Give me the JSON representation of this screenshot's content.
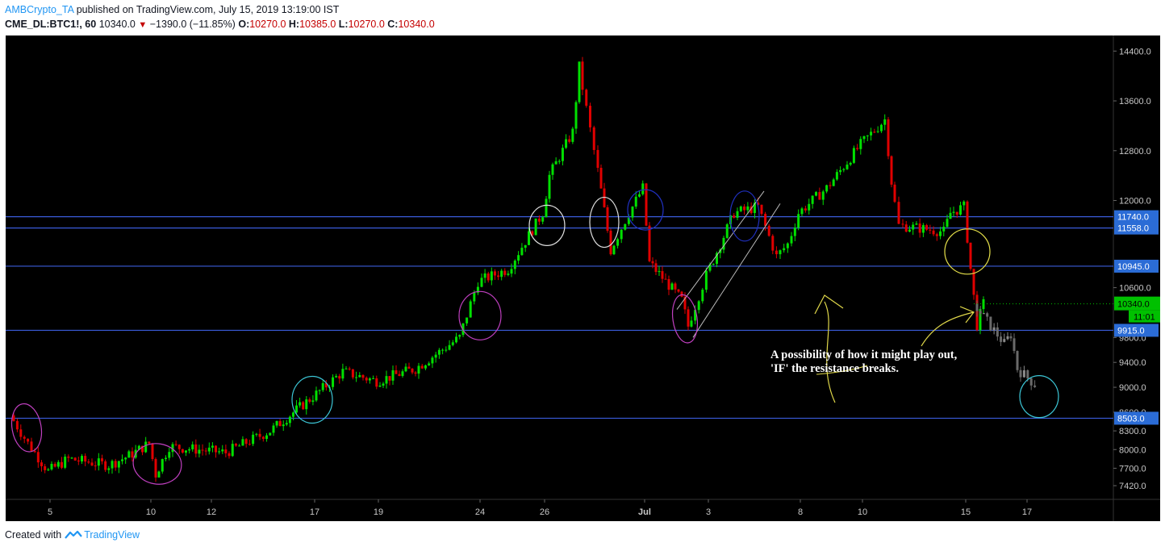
{
  "header": {
    "author": "AMBCrypto_TA",
    "published": "published on TradingView.com, July 15, 2019 13:19:00 IST",
    "symbol": "CME_DL:BTC1!, 60",
    "last": "10340.0",
    "change": "−1390.0 (−11.85%)",
    "o_label": "O:",
    "o_val": "10270.0",
    "h_label": "H:",
    "h_val": "10385.0",
    "l_label": "L:",
    "l_val": "10270.0",
    "c_label": "C:",
    "c_val": "10340.0"
  },
  "footer": {
    "created_with": "Created with",
    "brand": "TradingView"
  },
  "colors": {
    "background": "#000000",
    "up": "#00e000",
    "down": "#e00000",
    "projection": "#6a6a6a",
    "level_line": "#3a5bd9",
    "level_label_bg": "#2b6cd6",
    "price_label_bg": "#00c000"
  },
  "chart_data": {
    "type": "candlestick",
    "title": "",
    "ylim": [
      7200,
      14650
    ],
    "y_ticks": [
      "14400.0",
      "13600.0",
      "12800.0",
      "12000.0",
      "10600.0",
      "9800.0",
      "9400.0",
      "9000.0",
      "8600.0",
      "8300.0",
      "8000.0",
      "7700.0",
      "7420.0"
    ],
    "x_ticks": [
      "5",
      "10",
      "12",
      "17",
      "19",
      "24",
      "26",
      "Jul",
      "3",
      "8",
      "10",
      "15",
      "17"
    ],
    "levels": [
      {
        "label": "11740.0",
        "value": 11740
      },
      {
        "label": "11558.0",
        "value": 11558
      },
      {
        "label": "10945.0",
        "value": 10945
      },
      {
        "label": "9915.0",
        "value": 9915
      },
      {
        "label": "8503.0",
        "value": 8503
      }
    ],
    "current_price": {
      "label": "10340.0",
      "value": 10340,
      "countdown": "11:01"
    },
    "annotation": [
      "A possibility of how it might play out,",
      "'IF' the resistance breaks."
    ],
    "price_path": [
      {
        "date": "Jun 3",
        "price": 8550
      },
      {
        "date": "Jun 4",
        "price": 8100
      },
      {
        "date": "Jun 5",
        "price": 7650
      },
      {
        "date": "Jun 6",
        "price": 7850
      },
      {
        "date": "Jun 8",
        "price": 7750
      },
      {
        "date": "Jun 9",
        "price": 7900
      },
      {
        "date": "Jun 10",
        "price": 8100
      },
      {
        "date": "Jun 10",
        "price": 7600
      },
      {
        "date": "Jun 11",
        "price": 8050
      },
      {
        "date": "Jun 13",
        "price": 7950
      },
      {
        "date": "Jun 15",
        "price": 8300
      },
      {
        "date": "Jun 17",
        "price": 8850
      },
      {
        "date": "Jun 18",
        "price": 9250
      },
      {
        "date": "Jun 19",
        "price": 9100
      },
      {
        "date": "Jun 21",
        "price": 9300
      },
      {
        "date": "Jun 23",
        "price": 9800
      },
      {
        "date": "Jun 24",
        "price": 10700
      },
      {
        "date": "Jun 25",
        "price": 10900
      },
      {
        "date": "Jun 26",
        "price": 11800
      },
      {
        "date": "Jun 26",
        "price": 12400
      },
      {
        "date": "Jun 27",
        "price": 13100
      },
      {
        "date": "Jun 27",
        "price": 14150
      },
      {
        "date": "Jun 28",
        "price": 12800
      },
      {
        "date": "Jun 29",
        "price": 11200
      },
      {
        "date": "Jun 30",
        "price": 11800
      },
      {
        "date": "Jul 1",
        "price": 12200
      },
      {
        "date": "Jul 1",
        "price": 11000
      },
      {
        "date": "Jul 2",
        "price": 10400
      },
      {
        "date": "Jul 2",
        "price": 9980
      },
      {
        "date": "Jul 3",
        "price": 10800
      },
      {
        "date": "Jul 4",
        "price": 11800
      },
      {
        "date": "Jul 5",
        "price": 11900
      },
      {
        "date": "Jul 6",
        "price": 11100
      },
      {
        "date": "Jul 7",
        "price": 11300
      },
      {
        "date": "Jul 8",
        "price": 11800
      },
      {
        "date": "Jul 9",
        "price": 12200
      },
      {
        "date": "Jul 10",
        "price": 12900
      },
      {
        "date": "Jul 11",
        "price": 13300
      },
      {
        "date": "Jul 11",
        "price": 12300
      },
      {
        "date": "Jul 12",
        "price": 11600
      },
      {
        "date": "Jul 14",
        "price": 11500
      },
      {
        "date": "Jul 14",
        "price": 11800
      },
      {
        "date": "Jul 15",
        "price": 11900
      },
      {
        "date": "Jul 15",
        "price": 10900
      },
      {
        "date": "Jul 15",
        "price": 10000
      },
      {
        "date": "Jul 15",
        "price": 10340
      }
    ],
    "projection_path": [
      {
        "date": "Jul 15",
        "price": 10340
      },
      {
        "date": "Jul 16",
        "price": 9700
      },
      {
        "date": "Jul 16",
        "price": 9850
      },
      {
        "date": "Jul 16",
        "price": 9300
      },
      {
        "date": "Jul 17",
        "price": 9050
      }
    ]
  }
}
